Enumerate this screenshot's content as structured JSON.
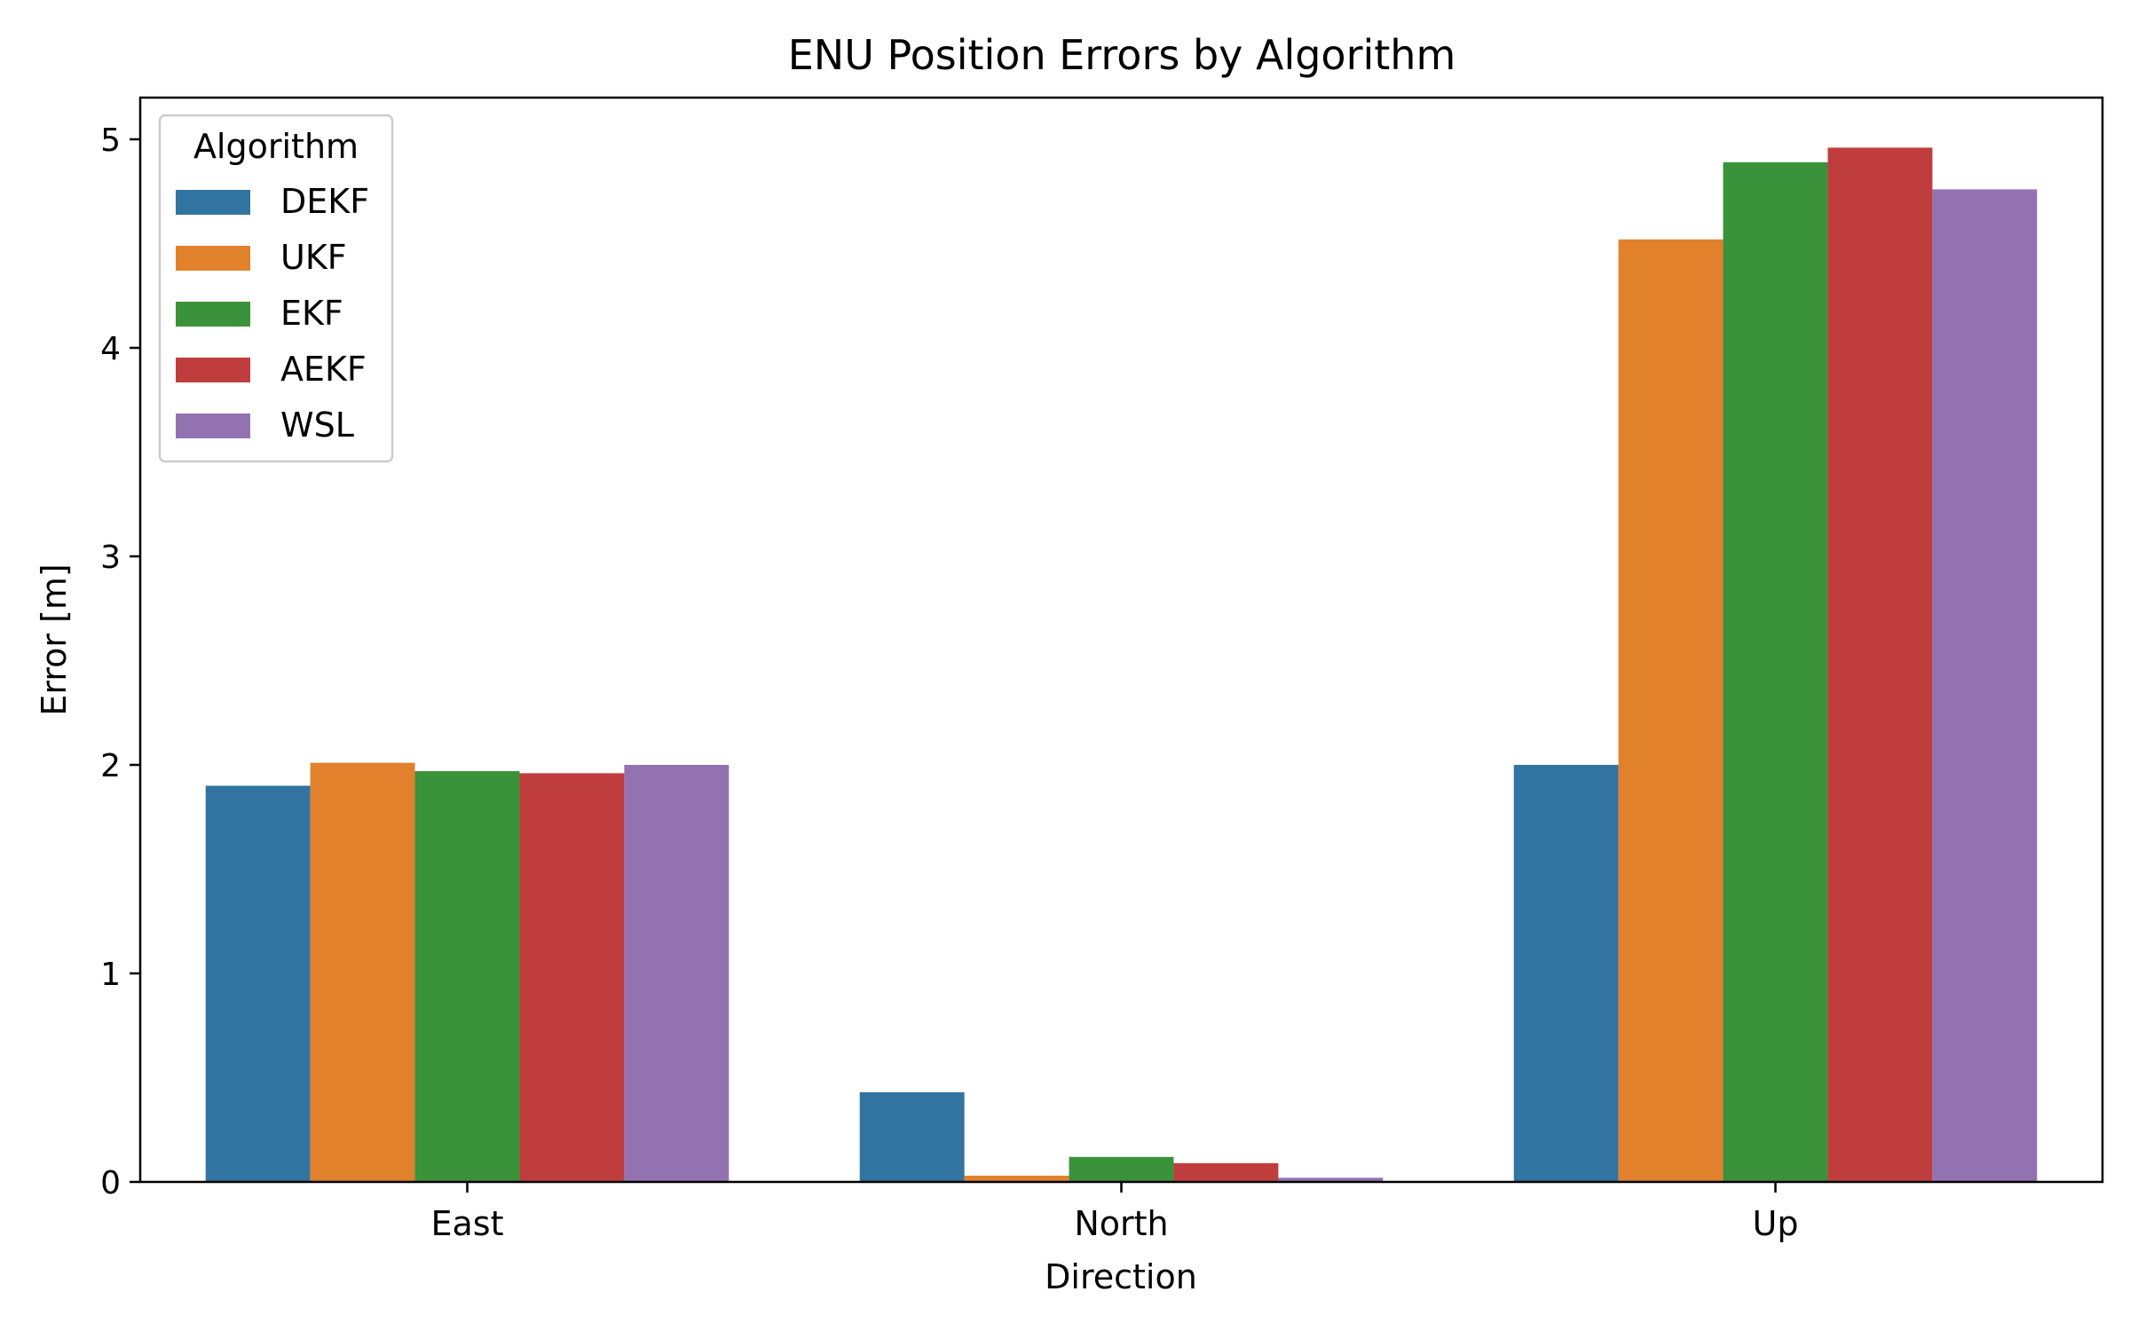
{
  "chart_data": {
    "type": "bar",
    "title": "ENU Position Errors by Algorithm",
    "xlabel": "Direction",
    "ylabel": "Error [m]",
    "categories": [
      "East",
      "North",
      "Up"
    ],
    "ylim": [
      0,
      5.2
    ],
    "yticks": [
      "0",
      "1",
      "2",
      "3",
      "4",
      "5"
    ],
    "grid": false,
    "legend": {
      "title": "Algorithm",
      "position": "top-left"
    },
    "series": [
      {
        "name": "DEKF",
        "color": "#3274a1",
        "values": [
          1.9,
          0.43,
          2.0
        ]
      },
      {
        "name": "UKF",
        "color": "#e1812c",
        "values": [
          2.01,
          0.03,
          4.52
        ]
      },
      {
        "name": "EKF",
        "color": "#3a923a",
        "values": [
          1.97,
          0.12,
          4.89
        ]
      },
      {
        "name": "AEKF",
        "color": "#c03d3e",
        "values": [
          1.96,
          0.09,
          4.96
        ]
      },
      {
        "name": "WSL",
        "color": "#9372b2",
        "values": [
          2.0,
          0.02,
          4.76
        ]
      }
    ]
  }
}
